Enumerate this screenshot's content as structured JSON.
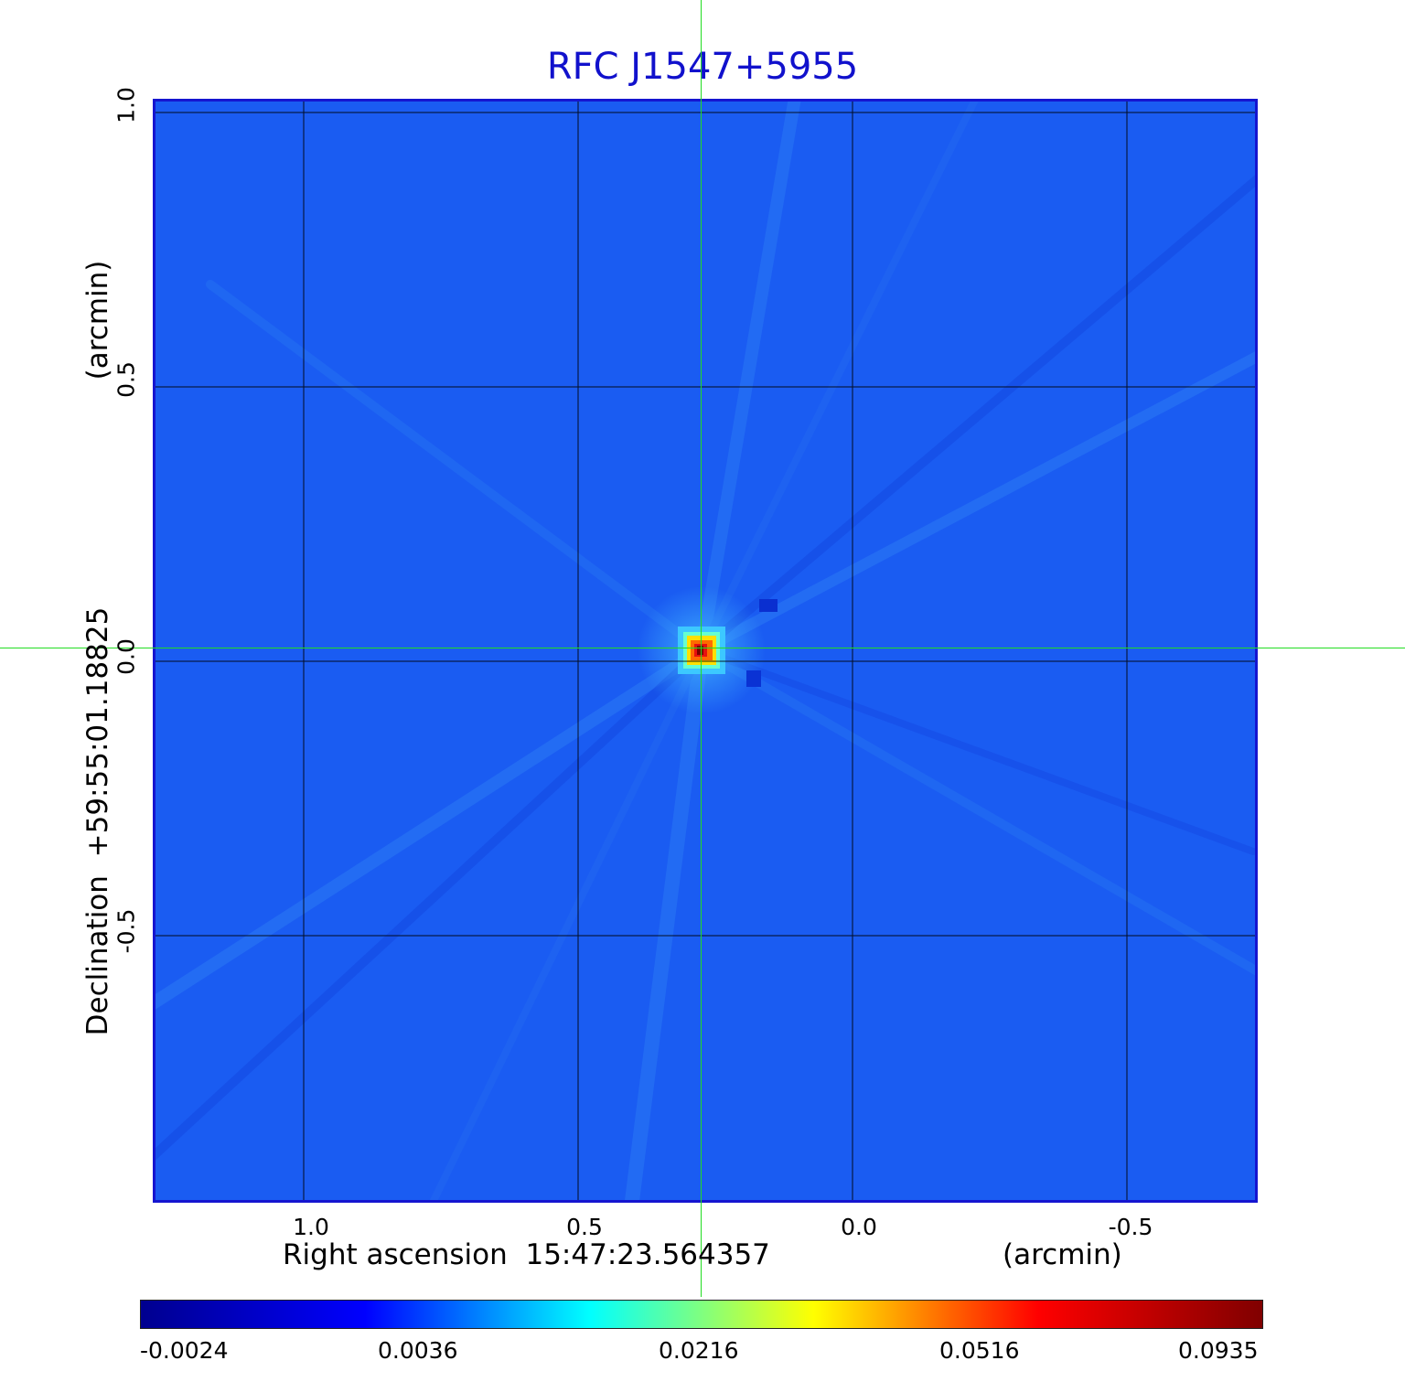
{
  "title": "RFC J1547+5955",
  "x_axis": {
    "label": "Right ascension  15:47:23.564357",
    "unit": "(arcmin)",
    "ticks": [
      "1.0",
      "0.5",
      "0.0",
      "-0.5"
    ]
  },
  "y_axis": {
    "label": "Declination  +59:55:01.18825",
    "unit": "(arcmin)",
    "ticks": [
      "1.0",
      "0.5",
      "0.0",
      "-0.5"
    ]
  },
  "colorbar": {
    "ticks": [
      "-0.0024",
      "0.0036",
      "0.0216",
      "0.0516",
      "0.0935"
    ],
    "colormap": [
      "#00008f",
      "#0000ff",
      "#00ffff",
      "#ffff00",
      "#ff0000",
      "#800000"
    ]
  },
  "colors": {
    "background_field": "#1a5cf2",
    "crosshair": "#22dd22",
    "frame": "#1515d0",
    "title": "#1111cc"
  }
}
